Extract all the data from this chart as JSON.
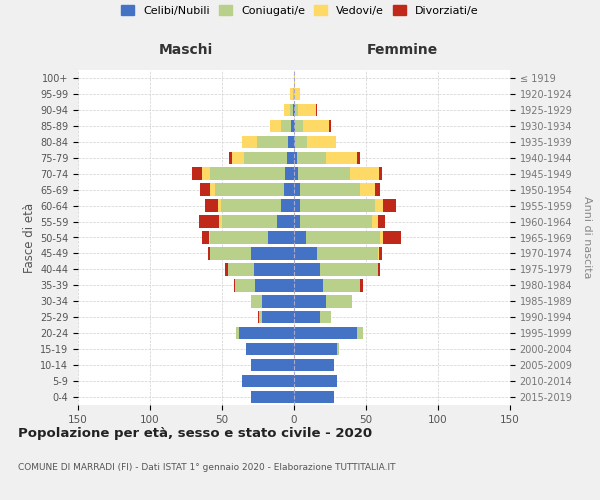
{
  "age_groups": [
    "0-4",
    "5-9",
    "10-14",
    "15-19",
    "20-24",
    "25-29",
    "30-34",
    "35-39",
    "40-44",
    "45-49",
    "50-54",
    "55-59",
    "60-64",
    "65-69",
    "70-74",
    "75-79",
    "80-84",
    "85-89",
    "90-94",
    "95-99",
    "100+"
  ],
  "birth_years": [
    "2015-2019",
    "2010-2014",
    "2005-2009",
    "2000-2004",
    "1995-1999",
    "1990-1994",
    "1985-1989",
    "1980-1984",
    "1975-1979",
    "1970-1974",
    "1965-1969",
    "1960-1964",
    "1955-1959",
    "1950-1954",
    "1945-1949",
    "1940-1944",
    "1935-1939",
    "1930-1934",
    "1925-1929",
    "1920-1924",
    "≤ 1919"
  ],
  "colors": {
    "celibe": "#4472C4",
    "coniugato": "#b8d08a",
    "vedovo": "#ffd966",
    "divorziato": "#c0281a"
  },
  "males": {
    "celibe": [
      30,
      36,
      30,
      33,
      38,
      22,
      22,
      27,
      28,
      30,
      18,
      12,
      9,
      7,
      6,
      5,
      4,
      2,
      1,
      0,
      0
    ],
    "coniugato": [
      0,
      0,
      0,
      0,
      2,
      2,
      8,
      14,
      18,
      28,
      40,
      38,
      42,
      48,
      52,
      30,
      22,
      7,
      2,
      1,
      0
    ],
    "vedovo": [
      0,
      0,
      0,
      0,
      0,
      0,
      0,
      0,
      0,
      0,
      1,
      2,
      2,
      3,
      6,
      8,
      10,
      8,
      4,
      2,
      0
    ],
    "divorziato": [
      0,
      0,
      0,
      0,
      0,
      1,
      0,
      1,
      2,
      2,
      5,
      14,
      9,
      7,
      7,
      2,
      0,
      0,
      0,
      0,
      0
    ]
  },
  "females": {
    "nubile": [
      28,
      30,
      28,
      30,
      44,
      18,
      22,
      20,
      18,
      16,
      8,
      4,
      4,
      4,
      3,
      2,
      1,
      1,
      1,
      0,
      0
    ],
    "coniugata": [
      0,
      0,
      0,
      1,
      4,
      8,
      18,
      26,
      40,
      42,
      52,
      50,
      52,
      42,
      36,
      20,
      8,
      5,
      2,
      0,
      0
    ],
    "vedova": [
      0,
      0,
      0,
      0,
      0,
      0,
      0,
      0,
      0,
      1,
      2,
      4,
      6,
      10,
      20,
      22,
      20,
      18,
      12,
      4,
      1
    ],
    "divorziata": [
      0,
      0,
      0,
      0,
      0,
      0,
      0,
      2,
      2,
      2,
      12,
      5,
      9,
      4,
      2,
      2,
      0,
      2,
      1,
      0,
      0
    ]
  },
  "title": "Popolazione per età, sesso e stato civile - 2020",
  "subtitle": "COMUNE DI MARRADI (FI) - Dati ISTAT 1° gennaio 2020 - Elaborazione TUTTITALIA.IT",
  "ylabel_left": "Fasce di età",
  "ylabel_right": "Anni di nascita",
  "header_left": "Maschi",
  "header_right": "Femmine",
  "xlim": 150,
  "background_color": "#f0f0f0",
  "plot_bg": "#ffffff",
  "legend_labels": [
    "Celibi/Nubili",
    "Coniugati/e",
    "Vedovi/e",
    "Divorziati/e"
  ]
}
